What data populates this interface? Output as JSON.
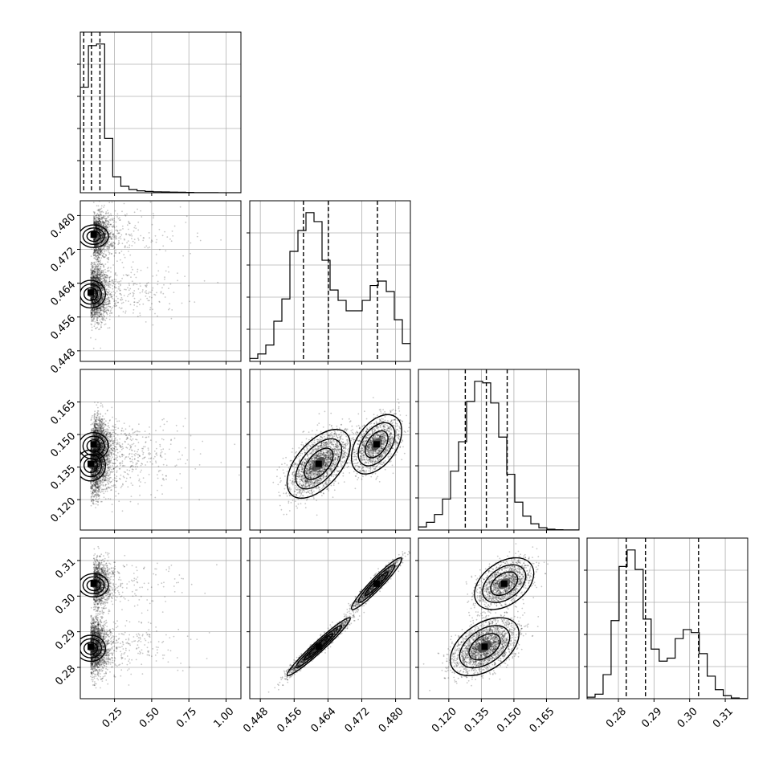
{
  "chart_data": {
    "type": "scatter",
    "title": "",
    "grid": true,
    "parameters": [
      {
        "xlim": [
          0.02,
          1.1
        ],
        "ticks": [
          0.25,
          0.5,
          0.75,
          1.0
        ],
        "tick_labels": [
          "0.25",
          "0.50",
          "0.75",
          "1.00"
        ]
      },
      {
        "xlim": [
          0.4455,
          0.4835
        ],
        "ticks": [
          0.448,
          0.456,
          0.464,
          0.472,
          0.48
        ],
        "tick_labels": [
          "0.448",
          "0.456",
          "0.464",
          "0.472",
          "0.480"
        ]
      },
      {
        "xlim": [
          0.106,
          0.18
        ],
        "ticks": [
          0.12,
          0.135,
          0.15,
          0.165
        ],
        "tick_labels": [
          "0.120",
          "0.135",
          "0.150",
          "0.165"
        ]
      },
      {
        "xlim": [
          0.2712,
          0.3163
        ],
        "ticks": [
          0.28,
          0.29,
          0.3,
          0.31
        ],
        "tick_labels": [
          "0.28",
          "0.29",
          "0.30",
          "0.31"
        ]
      }
    ],
    "histograms": [
      {
        "edges_from": 0.02,
        "bin_width": 0.0545,
        "counts": [
          0.66,
          0.92,
          0.93,
          0.34,
          0.1,
          0.04,
          0.02,
          0.012,
          0.008,
          0.006,
          0.005,
          0.004,
          0.003,
          0.002,
          0.001,
          0.001,
          0.0005,
          0.0003,
          0.0002,
          0.0001
        ],
        "quantiles": [
          0.043,
          0.095,
          0.152
        ]
      },
      {
        "edges_from": 0.4455,
        "bin_width": 0.0019,
        "counts": [
          0.02,
          0.05,
          0.11,
          0.27,
          0.42,
          0.74,
          0.88,
          1.0,
          0.94,
          0.68,
          0.48,
          0.41,
          0.34,
          0.34,
          0.41,
          0.51,
          0.54,
          0.47,
          0.28,
          0.12
        ],
        "quantiles": [
          0.4582,
          0.4641,
          0.4757
        ]
      },
      {
        "edges_from": 0.106,
        "bin_width": 0.0037,
        "counts": [
          0.02,
          0.05,
          0.1,
          0.2,
          0.38,
          0.57,
          0.83,
          0.96,
          0.95,
          0.82,
          0.6,
          0.36,
          0.18,
          0.09,
          0.04,
          0.015,
          0.005,
          0.002,
          0.001,
          0.0005
        ],
        "quantiles": [
          0.1276,
          0.1373,
          0.1469
        ]
      },
      {
        "edges_from": 0.2712,
        "bin_width": 0.00225,
        "counts": [
          0.01,
          0.03,
          0.16,
          0.52,
          0.88,
          0.99,
          0.86,
          0.53,
          0.33,
          0.25,
          0.27,
          0.4,
          0.46,
          0.44,
          0.3,
          0.15,
          0.06,
          0.02,
          0.005,
          0.001
        ],
        "quantiles": [
          0.2822,
          0.2876,
          0.3025
        ]
      }
    ],
    "pairs": [
      {
        "x": 0,
        "y": 1,
        "modes": [
          {
            "cx": 0.09,
            "cy": 0.4618,
            "sx": 0.045,
            "sy": 0.0033,
            "rho": 0.0,
            "w": 0.6
          },
          {
            "cx": 0.11,
            "cy": 0.4755,
            "sx": 0.045,
            "sy": 0.0027,
            "rho": 0.0,
            "w": 0.4
          }
        ]
      },
      {
        "x": 0,
        "y": 2,
        "modes": [
          {
            "cx": 0.09,
            "cy": 0.1365,
            "sx": 0.045,
            "sy": 0.0072,
            "rho": 0.0,
            "w": 0.6
          },
          {
            "cx": 0.11,
            "cy": 0.1455,
            "sx": 0.045,
            "sy": 0.0062,
            "rho": 0.0,
            "w": 0.4
          }
        ]
      },
      {
        "x": 1,
        "y": 2,
        "modes": [
          {
            "cx": 0.4618,
            "cy": 0.1365,
            "sx": 0.0034,
            "sy": 0.0072,
            "rho": 0.55,
            "w": 0.6
          },
          {
            "cx": 0.4755,
            "cy": 0.1455,
            "sx": 0.0027,
            "sy": 0.0062,
            "rho": 0.45,
            "w": 0.4
          }
        ]
      },
      {
        "x": 0,
        "y": 3,
        "modes": [
          {
            "cx": 0.09,
            "cy": 0.2858,
            "sx": 0.045,
            "sy": 0.0037,
            "rho": 0.0,
            "w": 0.6
          },
          {
            "cx": 0.11,
            "cy": 0.3035,
            "sx": 0.045,
            "sy": 0.0033,
            "rho": 0.0,
            "w": 0.4
          }
        ]
      },
      {
        "x": 1,
        "y": 3,
        "modes": [
          {
            "cx": 0.4618,
            "cy": 0.2858,
            "sx": 0.0034,
            "sy": 0.0037,
            "rho": 0.97,
            "w": 0.6
          },
          {
            "cx": 0.4755,
            "cy": 0.3035,
            "sx": 0.0027,
            "sy": 0.0033,
            "rho": 0.95,
            "w": 0.4
          }
        ]
      },
      {
        "x": 2,
        "y": 3,
        "modes": [
          {
            "cx": 0.1365,
            "cy": 0.2858,
            "sx": 0.0072,
            "sy": 0.0037,
            "rho": 0.45,
            "w": 0.6
          },
          {
            "cx": 0.1455,
            "cy": 0.3035,
            "sx": 0.0062,
            "sy": 0.0033,
            "rho": 0.4,
            "w": 0.4
          }
        ]
      }
    ]
  }
}
